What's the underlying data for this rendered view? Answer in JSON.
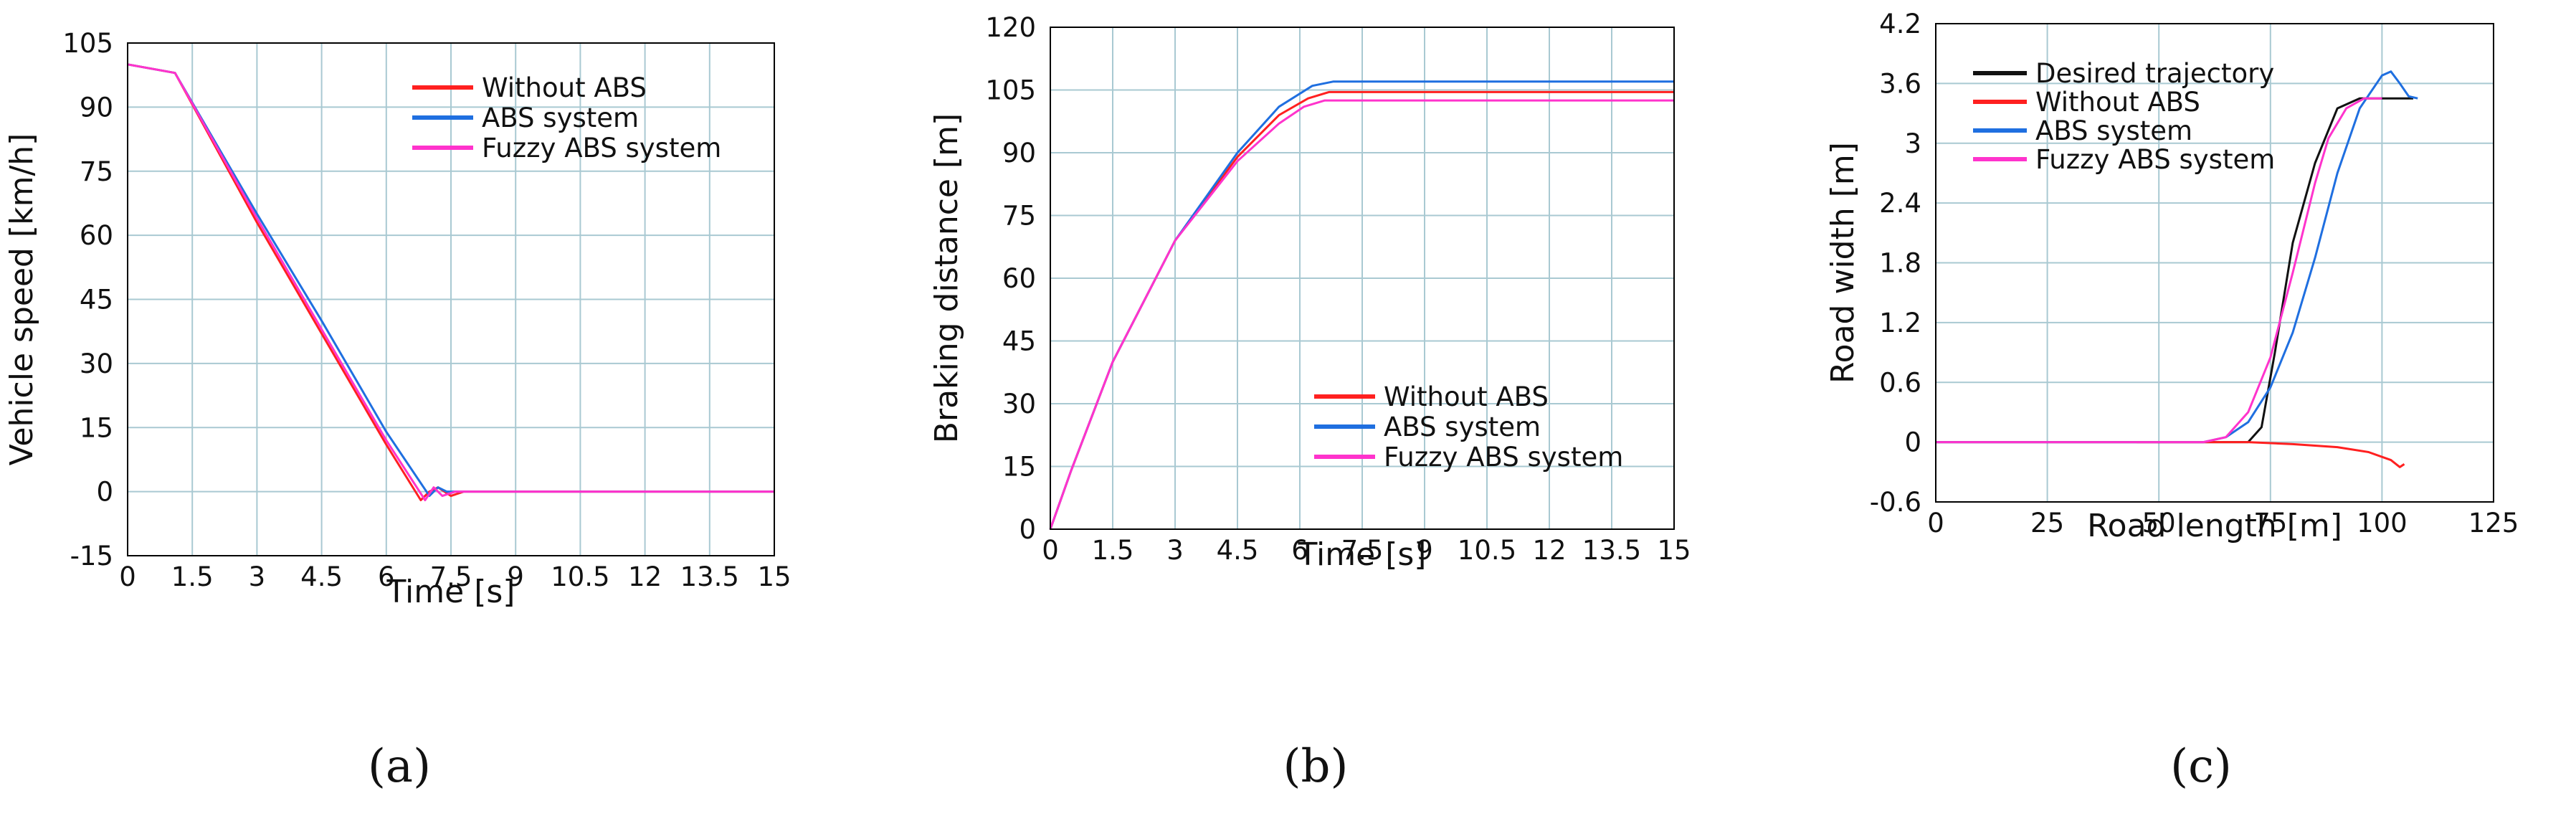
{
  "chart_data": [
    {
      "type": "line",
      "panel_label": "(a)",
      "xlabel": "Time [s]",
      "ylabel": "Vehicle speed [km/h]",
      "xlim": [
        0,
        15
      ],
      "ylim": [
        -15,
        105
      ],
      "xticks": [
        0,
        1.5,
        3,
        4.5,
        6,
        7.5,
        9,
        10.5,
        12,
        13.5,
        15
      ],
      "yticks": [
        -15,
        0,
        15,
        30,
        45,
        60,
        75,
        90,
        105
      ],
      "grid": true,
      "legend_position": "top-right",
      "series": [
        {
          "name": "Without ABS",
          "color": "#ff2020",
          "x": [
            0,
            1.1,
            3,
            4.5,
            6,
            6.8,
            7.0,
            7.2,
            7.5,
            7.8,
            15
          ],
          "y": [
            100,
            98,
            63,
            37,
            11,
            -2,
            0,
            1,
            -1,
            0,
            0
          ]
        },
        {
          "name": "ABS system",
          "color": "#1f6fe0",
          "x": [
            0,
            1.1,
            3,
            4.5,
            6,
            7.0,
            7.2,
            7.4,
            15
          ],
          "y": [
            100,
            98,
            65,
            40,
            14,
            -1,
            1,
            0,
            0
          ]
        },
        {
          "name": "Fuzzy ABS system",
          "color": "#ff33cc",
          "x": [
            0,
            1.1,
            3,
            4.5,
            6,
            6.9,
            7.1,
            7.3,
            7.6,
            15
          ],
          "y": [
            100,
            98,
            64,
            38,
            12,
            -2,
            1,
            -1,
            0,
            0
          ]
        }
      ]
    },
    {
      "type": "line",
      "panel_label": "(b)",
      "xlabel": "Time [s]",
      "ylabel": "Braking distance [m]",
      "xlim": [
        0,
        15
      ],
      "ylim": [
        0,
        120
      ],
      "xticks": [
        0,
        1.5,
        3,
        4.5,
        6,
        7.5,
        9,
        10.5,
        12,
        13.5,
        15
      ],
      "yticks": [
        0,
        15,
        30,
        45,
        60,
        75,
        90,
        105,
        120
      ],
      "grid": true,
      "legend_position": "bottom-right",
      "series": [
        {
          "name": "Without ABS",
          "color": "#ff2020",
          "x": [
            0,
            0.5,
            1.5,
            3,
            4.5,
            5.5,
            6.2,
            6.7,
            15
          ],
          "y": [
            0,
            14,
            40,
            69,
            89,
            99,
            103,
            104.5,
            104.5
          ]
        },
        {
          "name": "ABS system",
          "color": "#1f6fe0",
          "x": [
            0,
            0.5,
            1.5,
            3,
            4.5,
            5.5,
            6.3,
            6.8,
            15
          ],
          "y": [
            0,
            14,
            40,
            69,
            90,
            101,
            106,
            107,
            107
          ]
        },
        {
          "name": "Fuzzy ABS system",
          "color": "#ff33cc",
          "x": [
            0,
            0.5,
            1.5,
            3,
            4.5,
            5.5,
            6.1,
            6.6,
            15
          ],
          "y": [
            0,
            14,
            40,
            69,
            88,
            97,
            101,
            102.5,
            102.5
          ]
        }
      ]
    },
    {
      "type": "line",
      "panel_label": "(c)",
      "xlabel": "Road length [m]",
      "ylabel": "Road width [m]",
      "xlim": [
        0,
        125
      ],
      "ylim": [
        -0.6,
        4.2
      ],
      "xticks": [
        0,
        25,
        50,
        75,
        100,
        125
      ],
      "yticks": [
        -0.6,
        0,
        0.6,
        1.2,
        1.8,
        2.4,
        3,
        3.6,
        4.2
      ],
      "grid": true,
      "legend_position": "top-left",
      "series": [
        {
          "name": "Desired trajectory",
          "color": "#111111",
          "x": [
            0,
            70,
            73,
            76,
            80,
            85,
            90,
            95,
            100,
            107
          ],
          "y": [
            0,
            0,
            0.15,
            0.9,
            2.0,
            2.8,
            3.35,
            3.45,
            3.45,
            3.45
          ]
        },
        {
          "name": "Without ABS",
          "color": "#ff2020",
          "x": [
            45,
            60,
            70,
            80,
            90,
            97,
            102,
            104,
            105
          ],
          "y": [
            0,
            0,
            0,
            -0.02,
            -0.05,
            -0.1,
            -0.18,
            -0.25,
            -0.22
          ]
        },
        {
          "name": "ABS system",
          "color": "#1f6fe0",
          "x": [
            0,
            60,
            65,
            70,
            75,
            80,
            85,
            90,
            95,
            100,
            102,
            104,
            106,
            108
          ],
          "y": [
            0,
            0,
            0.05,
            0.2,
            0.55,
            1.1,
            1.85,
            2.7,
            3.35,
            3.68,
            3.72,
            3.6,
            3.47,
            3.45
          ]
        },
        {
          "name": "Fuzzy ABS system",
          "color": "#ff33cc",
          "x": [
            0,
            60,
            65,
            70,
            75,
            80,
            85,
            88,
            92,
            96,
            100
          ],
          "y": [
            0,
            0,
            0.05,
            0.3,
            0.85,
            1.7,
            2.6,
            3.05,
            3.35,
            3.45,
            3.45
          ]
        }
      ]
    }
  ]
}
